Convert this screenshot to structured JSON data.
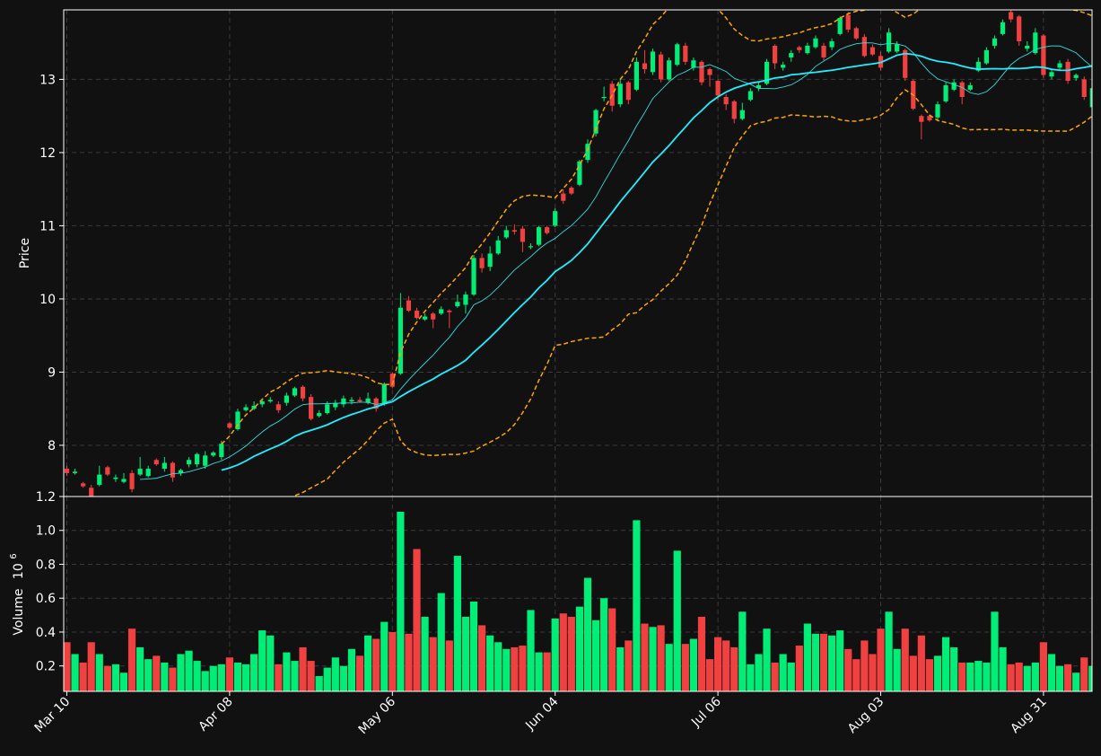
{
  "chart_data": {
    "type": "candlestick",
    "title": "",
    "colors": {
      "background": "#111111",
      "up": "#00ee77",
      "down": "#f04040",
      "grid": "#3a3a3a",
      "axis": "#ffffff",
      "ma_fast": "#33dddd",
      "ma_slow": "#22eeff",
      "bollinger": "#ffa500"
    },
    "price_panel": {
      "ylabel": "Price",
      "ylim": [
        7.3,
        13.95
      ],
      "yticks": [
        8,
        9,
        10,
        11,
        12,
        13
      ],
      "grid": true
    },
    "volume_panel": {
      "ylabel": "Volume",
      "ylabel_multiplier": "10",
      "ylabel_exponent": "6",
      "ylim": [
        0.05,
        1.2
      ],
      "yticks": [
        "0.2",
        "0.4",
        "0.6",
        "0.8",
        "1.0",
        "1.2"
      ],
      "grid": true
    },
    "x_axis": {
      "ticks": [
        {
          "label": "Mar 10",
          "index": 0
        },
        {
          "label": "Apr 08",
          "index": 20
        },
        {
          "label": "May 06",
          "index": 40
        },
        {
          "label": "Jun 04",
          "index": 60
        },
        {
          "label": "Jul 06",
          "index": 80
        },
        {
          "label": "Aug 03",
          "index": 100
        },
        {
          "label": "Aug 31",
          "index": 120
        }
      ],
      "tick_rotation": 45
    },
    "candles": [
      [
        7.68,
        7.62,
        7.72,
        7.58,
        0.34
      ],
      [
        7.62,
        7.64,
        7.68,
        7.6,
        0.27
      ],
      [
        7.48,
        7.44,
        7.5,
        7.42,
        0.22
      ],
      [
        7.42,
        7.26,
        7.46,
        7.24,
        0.34
      ],
      [
        7.46,
        7.6,
        7.72,
        7.44,
        0.27
      ],
      [
        7.7,
        7.6,
        7.72,
        7.58,
        0.2
      ],
      [
        7.54,
        7.56,
        7.6,
        7.5,
        0.21
      ],
      [
        7.5,
        7.54,
        7.62,
        7.48,
        0.16
      ],
      [
        7.62,
        7.4,
        7.66,
        7.36,
        0.42
      ],
      [
        7.6,
        7.68,
        7.84,
        7.58,
        0.31
      ],
      [
        7.58,
        7.68,
        7.72,
        7.56,
        0.24
      ],
      [
        7.8,
        7.74,
        7.82,
        7.72,
        0.26
      ],
      [
        7.68,
        7.76,
        7.84,
        7.64,
        0.22
      ],
      [
        7.76,
        7.56,
        7.78,
        7.5,
        0.19
      ],
      [
        7.62,
        7.66,
        7.68,
        7.58,
        0.27
      ],
      [
        7.74,
        7.8,
        7.84,
        7.7,
        0.29
      ],
      [
        7.74,
        7.88,
        7.9,
        7.7,
        0.23
      ],
      [
        7.72,
        7.86,
        7.92,
        7.68,
        0.17
      ],
      [
        7.86,
        7.9,
        7.92,
        7.84,
        0.2
      ],
      [
        7.84,
        8.02,
        8.06,
        7.8,
        0.21
      ],
      [
        8.3,
        8.24,
        8.32,
        8.22,
        0.25
      ],
      [
        8.22,
        8.46,
        8.5,
        8.2,
        0.22
      ],
      [
        8.48,
        8.52,
        8.56,
        8.46,
        0.21
      ],
      [
        8.5,
        8.54,
        8.6,
        8.48,
        0.27
      ],
      [
        8.56,
        8.6,
        8.64,
        8.52,
        0.41
      ],
      [
        8.6,
        8.62,
        8.66,
        8.58,
        0.38
      ],
      [
        8.56,
        8.48,
        8.6,
        8.44,
        0.21
      ],
      [
        8.58,
        8.68,
        8.72,
        8.54,
        0.28
      ],
      [
        8.68,
        8.78,
        8.8,
        8.66,
        0.23
      ],
      [
        8.8,
        8.64,
        8.82,
        8.6,
        0.31
      ],
      [
        8.66,
        8.36,
        8.7,
        8.34,
        0.23
      ],
      [
        8.4,
        8.44,
        8.48,
        8.38,
        0.14
      ],
      [
        8.44,
        8.56,
        8.6,
        8.42,
        0.19
      ],
      [
        8.52,
        8.58,
        8.62,
        8.48,
        0.25
      ],
      [
        8.56,
        8.64,
        8.68,
        8.52,
        0.2
      ],
      [
        8.6,
        8.62,
        8.66,
        8.56,
        0.3
      ],
      [
        8.62,
        8.6,
        8.66,
        8.58,
        0.26
      ],
      [
        8.58,
        8.64,
        8.72,
        8.56,
        0.38
      ],
      [
        8.64,
        8.5,
        8.66,
        8.46,
        0.36
      ],
      [
        8.56,
        8.84,
        8.86,
        8.54,
        0.46
      ],
      [
        8.98,
        8.8,
        9,
        8.78,
        0.4
      ],
      [
        8.98,
        9.88,
        10.08,
        8.96,
        1.11
      ],
      [
        9.98,
        9.84,
        10.04,
        9.82,
        0.39
      ],
      [
        9.84,
        9.74,
        9.88,
        9.72,
        0.89
      ],
      [
        9.72,
        9.76,
        9.8,
        9.7,
        0.49
      ],
      [
        9.8,
        9.72,
        9.82,
        9.6,
        0.37
      ],
      [
        9.8,
        9.86,
        9.9,
        9.78,
        0.63
      ],
      [
        9.84,
        9.82,
        9.86,
        9.6,
        0.35
      ],
      [
        9.9,
        9.96,
        10.06,
        9.88,
        0.85
      ],
      [
        9.92,
        10.06,
        10.1,
        9.8,
        0.49
      ],
      [
        10.06,
        10.56,
        10.6,
        10.04,
        0.58
      ],
      [
        10.56,
        10.42,
        10.62,
        10.36,
        0.44
      ],
      [
        10.44,
        10.62,
        10.72,
        10.38,
        0.38
      ],
      [
        10.62,
        10.8,
        10.86,
        10.6,
        0.34
      ],
      [
        10.84,
        10.94,
        11,
        10.82,
        0.3
      ],
      [
        10.94,
        10.92,
        11.02,
        10.88,
        0.31
      ],
      [
        10.96,
        10.78,
        11,
        10.64,
        0.32
      ],
      [
        10.72,
        10.72,
        10.76,
        10.68,
        0.53
      ],
      [
        10.74,
        10.98,
        11,
        10.72,
        0.28
      ],
      [
        10.98,
        10.9,
        11,
        10.88,
        0.28
      ],
      [
        11,
        11.2,
        11.24,
        10.98,
        0.48
      ],
      [
        11.44,
        11.34,
        11.5,
        11.3,
        0.51
      ],
      [
        11.52,
        11.44,
        11.54,
        11.42,
        0.49
      ],
      [
        11.56,
        11.88,
        11.9,
        11.54,
        0.55
      ],
      [
        11.9,
        12.12,
        12.18,
        11.86,
        0.72
      ],
      [
        12.26,
        12.58,
        12.6,
        12.22,
        0.47
      ],
      [
        12.76,
        12.76,
        12.9,
        12.7,
        0.6
      ],
      [
        12.94,
        12.64,
        12.98,
        12.56,
        0.54
      ],
      [
        12.66,
        12.94,
        13,
        12.62,
        0.31
      ],
      [
        12.96,
        12.72,
        12.98,
        12.66,
        0.35
      ],
      [
        12.86,
        13.24,
        13.3,
        12.84,
        1.06
      ],
      [
        13.22,
        13.14,
        13.4,
        13.08,
        0.45
      ],
      [
        13.1,
        13.38,
        13.42,
        13.06,
        0.43
      ],
      [
        13.34,
        13,
        13.38,
        12.96,
        0.44
      ],
      [
        13,
        13.26,
        13.3,
        12.98,
        0.33
      ],
      [
        13.2,
        13.48,
        13.5,
        13.18,
        0.88
      ],
      [
        13.46,
        13.24,
        13.5,
        13.2,
        0.33
      ],
      [
        13.16,
        13.26,
        13.3,
        13.12,
        0.36
      ],
      [
        13.24,
        12.96,
        13.26,
        12.92,
        0.49
      ],
      [
        13.14,
        13.06,
        13.16,
        12.9,
        0.24
      ],
      [
        12.98,
        12.78,
        13,
        12.72,
        0.37
      ],
      [
        12.76,
        12.66,
        12.8,
        12.58,
        0.35
      ],
      [
        12.7,
        12.46,
        12.72,
        12.4,
        0.31
      ],
      [
        12.46,
        12.58,
        12.68,
        12.44,
        0.52
      ],
      [
        12.72,
        12.84,
        12.88,
        12.7,
        0.21
      ],
      [
        12.88,
        12.92,
        12.96,
        12.84,
        0.27
      ],
      [
        12.94,
        13.24,
        13.28,
        12.92,
        0.42
      ],
      [
        13.46,
        13.22,
        13.48,
        13.14,
        0.22
      ],
      [
        13.16,
        13.2,
        13.24,
        13.12,
        0.27
      ],
      [
        13.3,
        13.36,
        13.4,
        13.24,
        0.22
      ],
      [
        13.44,
        13.4,
        13.46,
        13.36,
        0.32
      ],
      [
        13.36,
        13.46,
        13.5,
        13.34,
        0.45
      ],
      [
        13.44,
        13.56,
        13.6,
        13.42,
        0.39
      ],
      [
        13.46,
        13.3,
        13.5,
        13.26,
        0.39
      ],
      [
        13.44,
        13.52,
        13.56,
        13.4,
        0.38
      ],
      [
        13.62,
        13.84,
        13.86,
        13.6,
        0.41
      ],
      [
        13.88,
        13.68,
        13.92,
        13.64,
        0.3
      ],
      [
        13.7,
        13.56,
        13.72,
        13.54,
        0.24
      ],
      [
        13.58,
        13.32,
        13.62,
        13.3,
        0.35
      ],
      [
        13.44,
        13.34,
        13.48,
        13.32,
        0.27
      ],
      [
        13.32,
        13.16,
        13.38,
        13.12,
        0.42
      ],
      [
        13.38,
        13.64,
        13.7,
        13.36,
        0.52
      ],
      [
        13.38,
        13.48,
        13.52,
        13.36,
        0.3
      ],
      [
        13.4,
        13.02,
        13.42,
        12.98,
        0.42
      ],
      [
        12.98,
        12.6,
        13,
        12.58,
        0.26
      ],
      [
        12.5,
        12.42,
        12.52,
        12.18,
        0.38
      ],
      [
        12.5,
        12.44,
        12.52,
        12.42,
        0.24
      ],
      [
        12.48,
        12.66,
        12.7,
        12.44,
        0.26
      ],
      [
        12.7,
        12.92,
        12.96,
        12.68,
        0.37
      ],
      [
        12.86,
        12.96,
        13,
        12.84,
        0.31
      ],
      [
        12.96,
        12.76,
        12.98,
        12.66,
        0.22
      ],
      [
        12.86,
        12.92,
        12.96,
        12.84,
        0.22
      ],
      [
        13.12,
        13.24,
        13.3,
        13.1,
        0.23
      ],
      [
        13.22,
        13.4,
        13.44,
        13.2,
        0.22
      ],
      [
        13.46,
        13.56,
        13.6,
        13.42,
        0.52
      ],
      [
        13.62,
        13.78,
        13.82,
        13.6,
        0.31
      ],
      [
        13.92,
        13.82,
        13.96,
        13.78,
        0.21
      ],
      [
        13.86,
        13.52,
        13.88,
        13.46,
        0.22
      ],
      [
        13.42,
        13.46,
        13.52,
        13.38,
        0.2
      ],
      [
        13.36,
        13.64,
        13.7,
        13.34,
        0.22
      ],
      [
        13.6,
        13.06,
        13.62,
        13.02,
        0.34
      ],
      [
        13.04,
        13.1,
        13.14,
        13,
        0.27
      ],
      [
        13.16,
        13.22,
        13.26,
        13.12,
        0.2
      ],
      [
        13.24,
        12.98,
        13.28,
        12.94,
        0.21
      ],
      [
        13.02,
        13.06,
        13.08,
        12.98,
        0.16
      ],
      [
        13,
        12.76,
        13.04,
        12.72,
        0.25
      ],
      [
        12.62,
        12.88,
        12.92,
        12.6,
        0.2
      ]
    ]
  }
}
